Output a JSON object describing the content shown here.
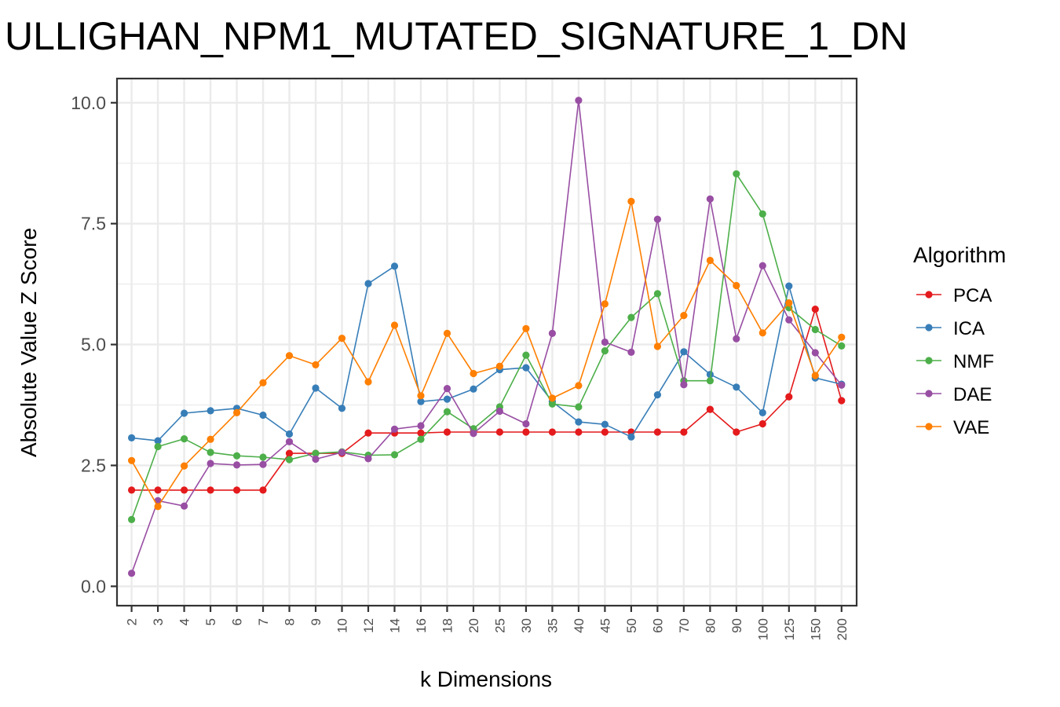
{
  "chart_data": {
    "type": "line",
    "title": "ULLIGHAN_NPM1_MUTATED_SIGNATURE_1_DN",
    "xlabel": "k Dimensions",
    "ylabel": "Absolute Value Z Score",
    "categories": [
      "2",
      "3",
      "4",
      "5",
      "6",
      "7",
      "8",
      "9",
      "10",
      "12",
      "14",
      "16",
      "18",
      "20",
      "25",
      "30",
      "35",
      "40",
      "45",
      "50",
      "60",
      "70",
      "80",
      "90",
      "100",
      "125",
      "150",
      "200"
    ],
    "ylim": [
      -0.4,
      10.5
    ],
    "yticks": [
      0.0,
      2.5,
      5.0,
      7.5,
      10.0
    ],
    "ytick_labels": [
      "0.0",
      "2.5",
      "5.0",
      "7.5",
      "10.0"
    ],
    "grid": true,
    "legend": {
      "title": "Algorithm",
      "placement": "right"
    },
    "series": [
      {
        "name": "PCA",
        "color": "#e41a1c",
        "values": [
          1.99,
          1.99,
          1.99,
          1.99,
          1.99,
          1.99,
          2.75,
          2.75,
          2.75,
          3.17,
          3.17,
          3.17,
          3.19,
          3.19,
          3.19,
          3.19,
          3.19,
          3.19,
          3.19,
          3.19,
          3.19,
          3.19,
          3.66,
          3.19,
          3.36,
          3.92,
          5.73,
          3.84
        ]
      },
      {
        "name": "ICA",
        "color": "#377eb8",
        "values": [
          3.07,
          3.01,
          3.58,
          3.63,
          3.68,
          3.54,
          3.15,
          4.1,
          3.68,
          6.26,
          6.62,
          3.82,
          3.87,
          4.08,
          4.48,
          4.52,
          3.82,
          3.4,
          3.35,
          3.09,
          3.96,
          4.85,
          4.38,
          4.12,
          3.59,
          6.21,
          4.31,
          4.18
        ]
      },
      {
        "name": "NMF",
        "color": "#4daf4a",
        "values": [
          1.38,
          2.89,
          3.05,
          2.77,
          2.7,
          2.67,
          2.62,
          2.75,
          2.78,
          2.71,
          2.72,
          3.04,
          3.61,
          3.26,
          3.71,
          4.78,
          3.77,
          3.71,
          4.87,
          5.56,
          6.05,
          4.25,
          4.25,
          8.53,
          7.7,
          5.76,
          5.31,
          4.97
        ]
      },
      {
        "name": "DAE",
        "color": "#984ea3",
        "values": [
          0.27,
          1.77,
          1.66,
          2.54,
          2.51,
          2.52,
          2.99,
          2.63,
          2.77,
          2.64,
          3.25,
          3.32,
          4.09,
          3.16,
          3.62,
          3.36,
          5.23,
          10.05,
          5.05,
          4.84,
          7.59,
          4.17,
          8.01,
          5.12,
          6.63,
          5.51,
          4.83,
          4.16
        ]
      },
      {
        "name": "VAE",
        "color": "#ff7f00",
        "values": [
          2.6,
          1.65,
          2.49,
          3.04,
          3.59,
          4.21,
          4.77,
          4.58,
          5.13,
          4.23,
          5.4,
          3.94,
          5.23,
          4.4,
          4.55,
          5.33,
          3.89,
          4.15,
          5.84,
          7.96,
          4.96,
          5.6,
          6.74,
          6.22,
          5.24,
          5.86,
          4.36,
          5.15
        ]
      }
    ]
  }
}
